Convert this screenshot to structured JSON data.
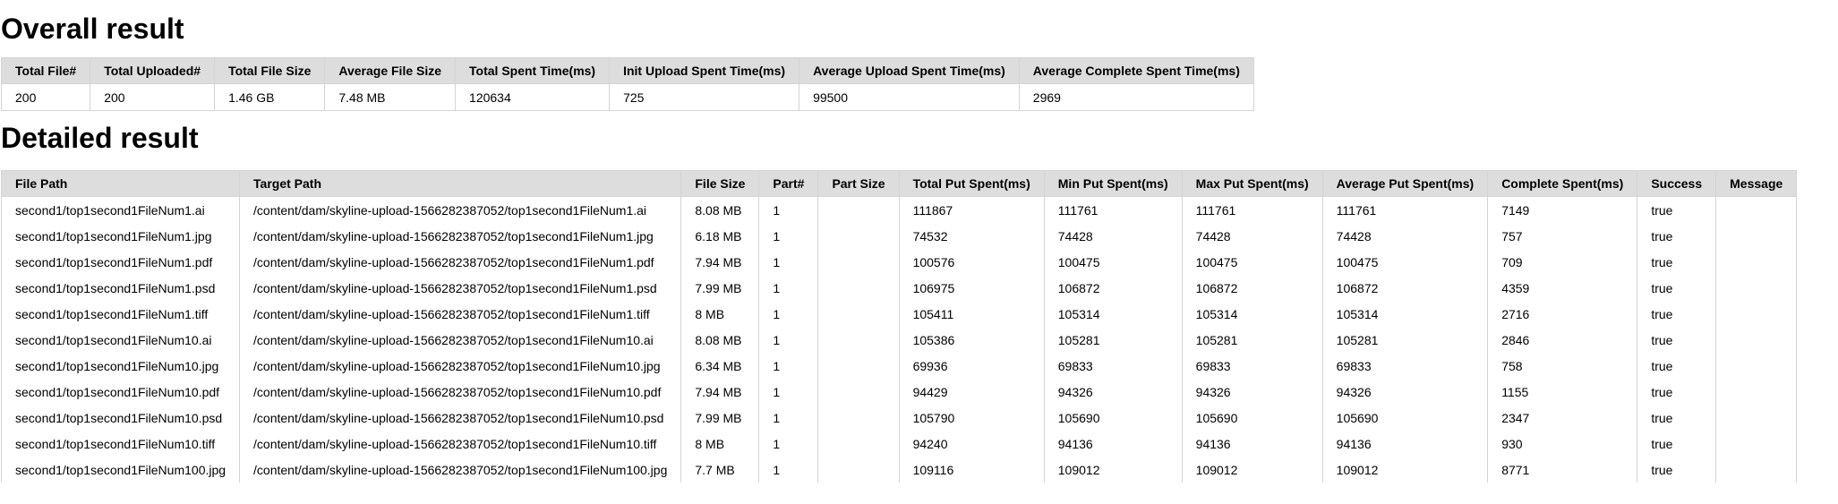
{
  "overall": {
    "heading": "Overall result",
    "headers": [
      "Total File#",
      "Total Uploaded#",
      "Total File Size",
      "Average File Size",
      "Total Spent Time(ms)",
      "Init Upload Spent Time(ms)",
      "Average Upload Spent Time(ms)",
      "Average Complete Spent Time(ms)"
    ],
    "row": [
      "200",
      "200",
      "1.46 GB",
      "7.48 MB",
      "120634",
      "725",
      "99500",
      "2969"
    ]
  },
  "detailed": {
    "heading": "Detailed result",
    "headers": [
      "File Path",
      "Target Path",
      "File Size",
      "Part#",
      "Part Size",
      "Total Put Spent(ms)",
      "Min Put Spent(ms)",
      "Max Put Spent(ms)",
      "Average Put Spent(ms)",
      "Complete Spent(ms)",
      "Success",
      "Message"
    ],
    "rows": [
      [
        "second1/top1second1FileNum1.ai",
        "/content/dam/skyline-upload-1566282387052/top1second1FileNum1.ai",
        "8.08 MB",
        "1",
        "",
        "111867",
        "111761",
        "111761",
        "111761",
        "7149",
        "true",
        ""
      ],
      [
        "second1/top1second1FileNum1.jpg",
        "/content/dam/skyline-upload-1566282387052/top1second1FileNum1.jpg",
        "6.18 MB",
        "1",
        "",
        "74532",
        "74428",
        "74428",
        "74428",
        "757",
        "true",
        ""
      ],
      [
        "second1/top1second1FileNum1.pdf",
        "/content/dam/skyline-upload-1566282387052/top1second1FileNum1.pdf",
        "7.94 MB",
        "1",
        "",
        "100576",
        "100475",
        "100475",
        "100475",
        "709",
        "true",
        ""
      ],
      [
        "second1/top1second1FileNum1.psd",
        "/content/dam/skyline-upload-1566282387052/top1second1FileNum1.psd",
        "7.99 MB",
        "1",
        "",
        "106975",
        "106872",
        "106872",
        "106872",
        "4359",
        "true",
        ""
      ],
      [
        "second1/top1second1FileNum1.tiff",
        "/content/dam/skyline-upload-1566282387052/top1second1FileNum1.tiff",
        "8 MB",
        "1",
        "",
        "105411",
        "105314",
        "105314",
        "105314",
        "2716",
        "true",
        ""
      ],
      [
        "second1/top1second1FileNum10.ai",
        "/content/dam/skyline-upload-1566282387052/top1second1FileNum10.ai",
        "8.08 MB",
        "1",
        "",
        "105386",
        "105281",
        "105281",
        "105281",
        "2846",
        "true",
        ""
      ],
      [
        "second1/top1second1FileNum10.jpg",
        "/content/dam/skyline-upload-1566282387052/top1second1FileNum10.jpg",
        "6.34 MB",
        "1",
        "",
        "69936",
        "69833",
        "69833",
        "69833",
        "758",
        "true",
        ""
      ],
      [
        "second1/top1second1FileNum10.pdf",
        "/content/dam/skyline-upload-1566282387052/top1second1FileNum10.pdf",
        "7.94 MB",
        "1",
        "",
        "94429",
        "94326",
        "94326",
        "94326",
        "1155",
        "true",
        ""
      ],
      [
        "second1/top1second1FileNum10.psd",
        "/content/dam/skyline-upload-1566282387052/top1second1FileNum10.psd",
        "7.99 MB",
        "1",
        "",
        "105790",
        "105690",
        "105690",
        "105690",
        "2347",
        "true",
        ""
      ],
      [
        "second1/top1second1FileNum10.tiff",
        "/content/dam/skyline-upload-1566282387052/top1second1FileNum10.tiff",
        "8 MB",
        "1",
        "",
        "94240",
        "94136",
        "94136",
        "94136",
        "930",
        "true",
        ""
      ],
      [
        "second1/top1second1FileNum100.jpg",
        "/content/dam/skyline-upload-1566282387052/top1second1FileNum100.jpg",
        "7.7 MB",
        "1",
        "",
        "109116",
        "109012",
        "109012",
        "109012",
        "8771",
        "true",
        ""
      ]
    ]
  }
}
